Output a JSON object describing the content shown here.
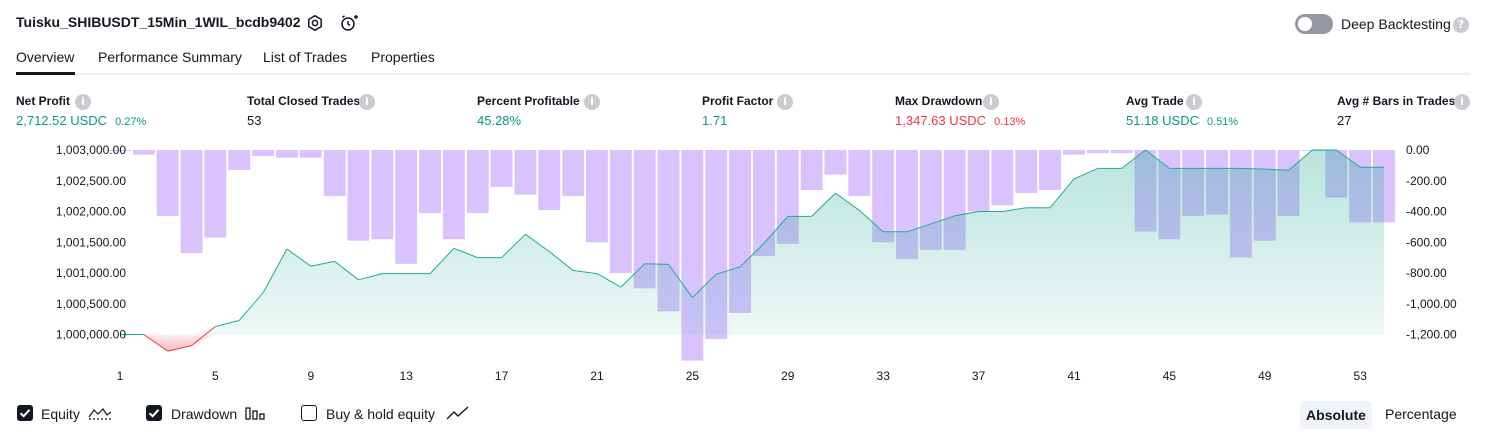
{
  "header": {
    "strategy_name": "Tuisku_SHIBUSDT_15Min_1WIL_bcdb9402",
    "deep_backtesting_label": "Deep Backtesting",
    "deep_backtesting_enabled": false
  },
  "tabs": [
    {
      "label": "Overview",
      "active": true
    },
    {
      "label": "Performance Summary",
      "active": false
    },
    {
      "label": "List of Trades",
      "active": false
    },
    {
      "label": "Properties",
      "active": false
    }
  ],
  "stats": [
    {
      "label": "Net Profit",
      "value": "2,712.52 USDC",
      "pct": "0.27%",
      "tone": "green"
    },
    {
      "label": "Total Closed Trades",
      "value": "53",
      "pct": "",
      "tone": "dark"
    },
    {
      "label": "Percent Profitable",
      "value": "45.28%",
      "pct": "",
      "tone": "green"
    },
    {
      "label": "Profit Factor",
      "value": "1.71",
      "pct": "",
      "tone": "green"
    },
    {
      "label": "Max Drawdown",
      "value": "1,347.63 USDC",
      "pct": "0.13%",
      "tone": "red"
    },
    {
      "label": "Avg Trade",
      "value": "51.18 USDC",
      "pct": "0.51%",
      "tone": "green"
    },
    {
      "label": "Avg # Bars in Trades",
      "value": "27",
      "pct": "",
      "tone": "dark"
    }
  ],
  "chart_data": {
    "type": "area",
    "x_ticks": [
      "1",
      "5",
      "9",
      "13",
      "17",
      "21",
      "25",
      "29",
      "33",
      "37",
      "41",
      "45",
      "49",
      "53"
    ],
    "x_range": [
      1,
      54
    ],
    "y_left": {
      "ticks": [
        "1,003,000.00",
        "1,002,500.00",
        "1,002,000.00",
        "1,001,500.00",
        "1,001,000.00",
        "1,000,500.00",
        "1,000,000.00"
      ],
      "range": [
        999600,
        1003000
      ]
    },
    "y_right": {
      "ticks": [
        "0.00",
        "-200.00",
        "-400.00",
        "-600.00",
        "-800.00",
        "-1,000.00",
        "-1,200.00"
      ],
      "range": [
        -1370,
        0
      ]
    },
    "series": [
      {
        "name": "Equity",
        "color": "#22ab94",
        "loss_color": "#f23645",
        "baseline": 1000000,
        "values": [
          1000000,
          1000000,
          999730,
          999820,
          1000130,
          1000230,
          1000680,
          1001390,
          1001110,
          1001190,
          1000890,
          1000990,
          1000990,
          1000990,
          1001400,
          1001250,
          1001250,
          1001630,
          1001350,
          1001040,
          1000990,
          1000770,
          1001150,
          1001140,
          1000600,
          1000980,
          1001100,
          1001480,
          1001920,
          1001920,
          1002300,
          1002020,
          1001670,
          1001670,
          1001800,
          1001930,
          1002000,
          1002000,
          1002060,
          1002060,
          1002530,
          1002700,
          1002700,
          1003000,
          1002700,
          1002700,
          1002700,
          1002700,
          1002690,
          1002670,
          1003000,
          1003000,
          1002720,
          1002720
        ]
      },
      {
        "name": "Drawdown",
        "color": "#d1b3ff",
        "values": [
          0,
          -30,
          -430,
          -670,
          -570,
          -130,
          -40,
          -50,
          -50,
          -300,
          -590,
          -580,
          -740,
          -410,
          -580,
          -410,
          -240,
          -290,
          -390,
          -300,
          -600,
          -800,
          -900,
          -1050,
          -1370,
          -1230,
          -1060,
          -690,
          -610,
          -260,
          -160,
          -300,
          -600,
          -710,
          -650,
          -650,
          -400,
          -360,
          -280,
          -260,
          -30,
          -20,
          -20,
          -530,
          -580,
          -430,
          -420,
          -700,
          -590,
          -430,
          0,
          -310,
          -470,
          -470
        ]
      }
    ],
    "grid": false,
    "legend": "bottom-left"
  },
  "legend": [
    {
      "label": "Equity",
      "checked": true
    },
    {
      "label": "Drawdown",
      "checked": true
    },
    {
      "label": "Buy & hold equity",
      "checked": false
    }
  ],
  "view_toggle": {
    "absolute": "Absolute",
    "percentage": "Percentage",
    "selected": "Absolute"
  }
}
